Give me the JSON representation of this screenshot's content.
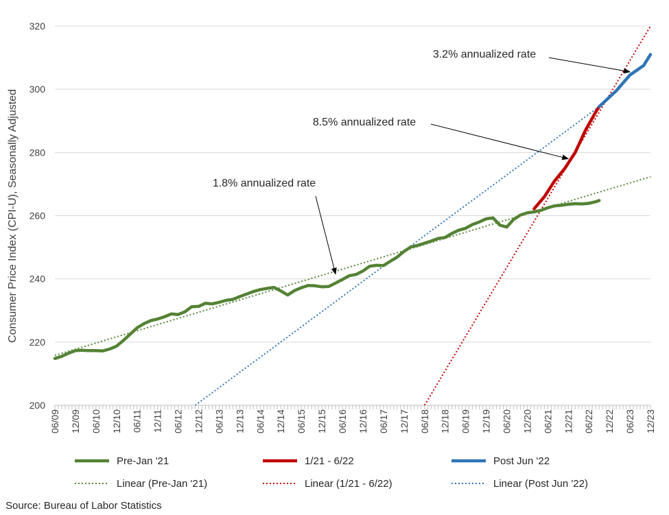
{
  "chart_data": {
    "type": "line",
    "ylabel": "Consumer Price Index (CPI-U), Seasonally Adjusted",
    "ylim": [
      200,
      320
    ],
    "yticks": [
      200,
      220,
      240,
      260,
      280,
      300,
      320
    ],
    "xlim": [
      0,
      174
    ],
    "x_unit": "months since 2009-06",
    "categories": [
      "06/09",
      "12/09",
      "06/10",
      "12/10",
      "06/11",
      "12/11",
      "06/12",
      "12/12",
      "06/13",
      "12/13",
      "06/14",
      "12/14",
      "06/15",
      "12/15",
      "06/16",
      "12/16",
      "06/17",
      "12/17",
      "06/18",
      "12/18",
      "06/19",
      "12/19",
      "06/20",
      "12/20",
      "06/21",
      "12/21",
      "06/22",
      "12/22",
      "06/23",
      "12/23"
    ],
    "grid": true,
    "legend_position": "bottom",
    "series": [
      {
        "name": "Pre-Jan '21",
        "color": "#548235",
        "style": "solid",
        "x": [
          0,
          2,
          4,
          6,
          8,
          10,
          12,
          14,
          16,
          18,
          20,
          22,
          24,
          26,
          28,
          30,
          32,
          34,
          36,
          38,
          40,
          42,
          44,
          46,
          48,
          50,
          52,
          54,
          56,
          58,
          60,
          62,
          64,
          66,
          68,
          70,
          72,
          74,
          76,
          78,
          80,
          82,
          84,
          86,
          88,
          90,
          92,
          94,
          96,
          98,
          100,
          102,
          104,
          106,
          108,
          110,
          112,
          114,
          116,
          118,
          120,
          122,
          124,
          126,
          128,
          130,
          132,
          134,
          136,
          138,
          140,
          142,
          144,
          146,
          148,
          150,
          152,
          154,
          156,
          158,
          159
        ],
        "values": [
          214.8,
          215.5,
          216.5,
          217.3,
          217.4,
          217.3,
          217.3,
          217.2,
          217.8,
          218.7,
          220.5,
          222.5,
          224.5,
          225.8,
          226.8,
          227.3,
          228.0,
          228.9,
          228.7,
          229.6,
          231.2,
          231.3,
          232.3,
          232.1,
          232.6,
          233.2,
          233.5,
          234.4,
          235.2,
          236.0,
          236.6,
          237.0,
          237.3,
          236.2,
          234.9,
          236.3,
          237.2,
          237.9,
          237.8,
          237.5,
          237.6,
          238.7,
          239.8,
          241.0,
          241.4,
          242.5,
          244.0,
          244.3,
          244.2,
          245.6,
          246.9,
          248.7,
          250.1,
          250.6,
          251.3,
          252.0,
          252.8,
          253.1,
          254.4,
          255.4,
          256.0,
          257.2,
          258.0,
          259.0,
          259.3,
          257.0,
          256.4,
          258.8,
          260.2,
          260.9,
          261.2,
          261.7,
          262.5,
          263.1,
          263.3,
          263.6,
          263.8,
          263.7,
          263.9,
          264.4,
          264.8
        ],
        "trend": {
          "name": "Linear (Pre-Jan '21)",
          "x": [
            0,
            174
          ],
          "values": [
            215.8,
            272.3
          ]
        }
      },
      {
        "name": "1/21 - 6/22",
        "color": "#c00000",
        "style": "solid",
        "x": [
          140,
          143,
          146,
          149,
          152,
          155,
          158,
          159
        ],
        "values": [
          262.2,
          266.0,
          271.0,
          275.0,
          280.0,
          287.0,
          292.8,
          294.5
        ],
        "trend": {
          "name": "Linear (1/21 - 6/22)",
          "x": [
            108,
            174
          ],
          "values": [
            200,
            320
          ]
        }
      },
      {
        "name": "Post Jun '22",
        "color": "#2e75b6",
        "style": "solid",
        "x": [
          159,
          160,
          162,
          164,
          166,
          168,
          170,
          172,
          174
        ],
        "values": [
          294.5,
          295.5,
          297.5,
          299.5,
          302.0,
          304.5,
          306.0,
          307.5,
          311.0
        ],
        "trend": {
          "name": "Linear (Post Jun '22)",
          "x": [
            41,
            159
          ],
          "values": [
            200,
            294.5
          ]
        }
      }
    ],
    "annotations": [
      {
        "text": "1.8% annualized rate",
        "target_x": 82,
        "target_y": 241.5
      },
      {
        "text": "8.5% annualized rate",
        "target_x": 150,
        "target_y": 278
      },
      {
        "text": "3.2% annualized rate",
        "target_x": 168,
        "target_y": 305.5
      }
    ]
  },
  "legend": [
    {
      "label": "Pre-Jan '21",
      "color": "#548235",
      "style": "solid"
    },
    {
      "label": "1/21 - 6/22",
      "color": "#c00000",
      "style": "solid"
    },
    {
      "label": "Post Jun '22",
      "color": "#2e75b6",
      "style": "solid"
    },
    {
      "label": "Linear (Pre-Jan '21)",
      "color": "#548235",
      "style": "dotted"
    },
    {
      "label": "Linear (1/21 - 6/22)",
      "color": "#c00000",
      "style": "dotted"
    },
    {
      "label": "Linear (Post Jun '22)",
      "color": "#2e75b6",
      "style": "dotted"
    }
  ],
  "source": "Source: Bureau of Labor Statistics"
}
